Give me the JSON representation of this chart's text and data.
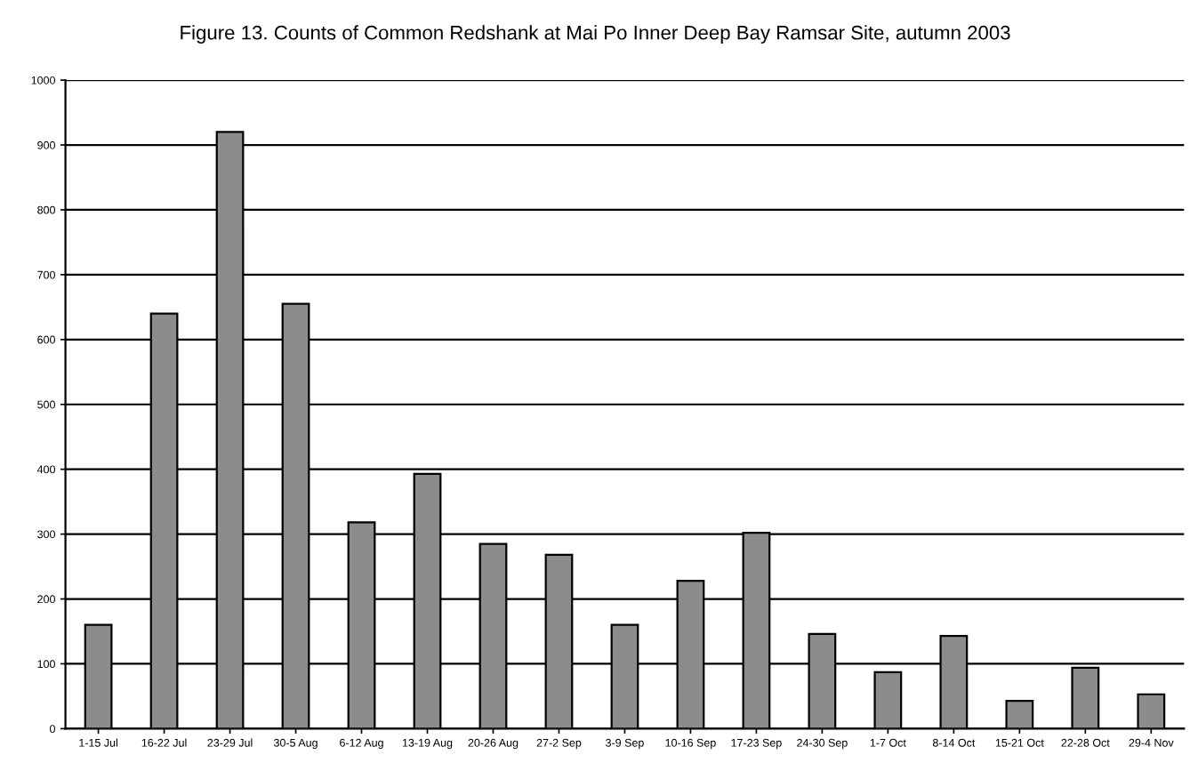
{
  "chart_data": {
    "type": "bar",
    "title": "Figure 13. Counts of Common Redshank at Mai Po Inner Deep Bay Ramsar Site, autumn 2003",
    "categories": [
      "1-15 Jul",
      "16-22 Jul",
      "23-29 Jul",
      "30-5 Aug",
      "6-12 Aug",
      "13-19 Aug",
      "20-26 Aug",
      "27-2 Sep",
      "3-9 Sep",
      "10-16 Sep",
      "17-23 Sep",
      "24-30 Sep",
      "1-7 Oct",
      "8-14 Oct",
      "15-21 Oct",
      "22-28 Oct",
      "29-4 Nov"
    ],
    "values": [
      160,
      640,
      920,
      655,
      318,
      393,
      285,
      268,
      160,
      228,
      302,
      146,
      87,
      143,
      43,
      94,
      53
    ],
    "color": "#8c8c8c",
    "ylim": [
      0,
      1000
    ],
    "yticks": [
      0,
      100,
      200,
      300,
      400,
      500,
      600,
      700,
      800,
      900,
      1000
    ],
    "grid": "y"
  }
}
